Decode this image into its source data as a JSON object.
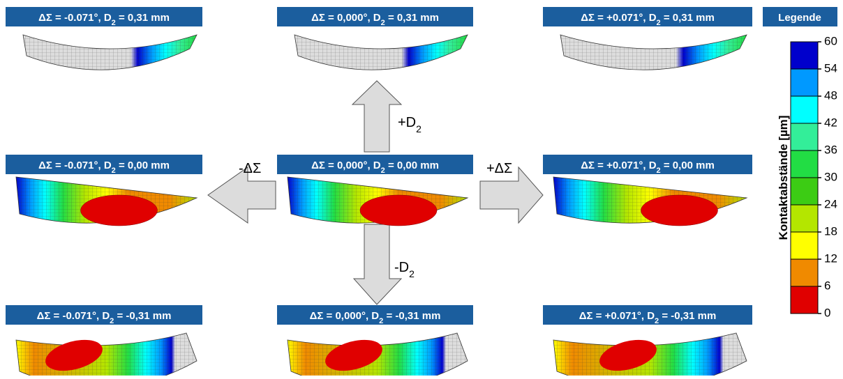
{
  "panels": [
    {
      "label": {
        "prefix": "ΔΣ = -0.071°, D",
        "sub": "2",
        "suffix": " = 0,31 mm"
      }
    },
    {
      "label": {
        "prefix": "ΔΣ = 0,000°, D",
        "sub": "2",
        "suffix": " = 0,31 mm"
      }
    },
    {
      "label": {
        "prefix": "ΔΣ = +0.071°, D",
        "sub": "2",
        "suffix": " = 0,31 mm"
      }
    },
    {
      "label": {
        "prefix": "ΔΣ = -0.071°, D",
        "sub": "2",
        "suffix": " = 0,00 mm"
      }
    },
    {
      "label": {
        "prefix": "ΔΣ = 0,000°, D",
        "sub": "2",
        "suffix": " = 0,00 mm"
      }
    },
    {
      "label": {
        "prefix": "ΔΣ = +0.071°, D",
        "sub": "2",
        "suffix": " = 0,00 mm"
      }
    },
    {
      "label": {
        "prefix": "ΔΣ = -0.071°, D",
        "sub": "2",
        "suffix": " = -0,31 mm"
      }
    },
    {
      "label": {
        "prefix": "ΔΣ = 0,000°, D",
        "sub": "2",
        "suffix": " = -0,31 mm"
      }
    },
    {
      "label": {
        "prefix": "ΔΣ = +0.071°, D",
        "sub": "2",
        "suffix": " = -0,31 mm"
      }
    }
  ],
  "arrows": {
    "up": {
      "prefix": "+D",
      "sub": "2"
    },
    "down": {
      "prefix": "-D",
      "sub": "2"
    },
    "left": {
      "prefix": "-ΔΣ"
    },
    "right": {
      "prefix": "+ΔΣ"
    }
  },
  "legend": {
    "title": "Legende",
    "axis_label": "Kontaktabstände [µm]",
    "ticks": [
      0,
      6,
      12,
      18,
      24,
      30,
      36,
      42,
      48,
      54,
      60
    ],
    "colors": [
      "#e00000",
      "#f08a00",
      "#ffff00",
      "#b4e600",
      "#3ccc14",
      "#22dd44",
      "#33ee99",
      "#00ffff",
      "#0099ff",
      "#0000cc"
    ]
  }
}
